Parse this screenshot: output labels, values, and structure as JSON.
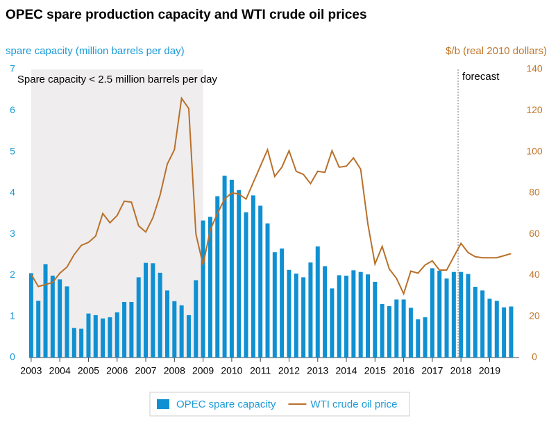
{
  "chart_data": {
    "type": "bar-line",
    "title": "OPEC spare production capacity and WTI crude oil prices",
    "y_label": "spare capacity (million barrels per day)",
    "y2_label": "$/b (real 2010 dollars)",
    "annotations": [
      {
        "text": "Spare capacity < 2.5 million barrels per day",
        "x": [
          2003,
          2009
        ]
      },
      {
        "text": "forecast",
        "x": 2017.9
      }
    ],
    "x": [
      2003,
      2003.25,
      2003.5,
      2003.75,
      2004,
      2004.25,
      2004.5,
      2004.75,
      2005,
      2005.25,
      2005.5,
      2005.75,
      2006,
      2006.25,
      2006.5,
      2006.75,
      2007,
      2007.25,
      2007.5,
      2007.75,
      2008,
      2008.25,
      2008.5,
      2008.75,
      2009,
      2009.25,
      2009.5,
      2009.75,
      2010,
      2010.25,
      2010.5,
      2010.75,
      2011,
      2011.25,
      2011.5,
      2011.75,
      2012,
      2012.25,
      2012.5,
      2012.75,
      2013,
      2013.25,
      2013.5,
      2013.75,
      2014,
      2014.25,
      2014.5,
      2014.75,
      2015,
      2015.25,
      2015.5,
      2015.75,
      2016,
      2016.25,
      2016.5,
      2016.75,
      2017,
      2017.25,
      2017.5,
      2017.75,
      2018,
      2018.25,
      2018.5,
      2018.75,
      2019,
      2019.25,
      2019.5,
      2019.75
    ],
    "series": [
      {
        "name": "OPEC spare capacity",
        "color": "#0f90d2",
        "kind": "bar",
        "values": [
          2.05,
          1.38,
          2.27,
          1.99,
          1.9,
          1.73,
          0.72,
          0.7,
          1.07,
          1.03,
          0.95,
          0.98,
          1.1,
          1.35,
          1.35,
          1.95,
          2.3,
          2.29,
          2.06,
          1.63,
          1.37,
          1.27,
          1.03,
          1.88,
          3.33,
          3.42,
          3.92,
          4.42,
          4.32,
          4.07,
          3.53,
          3.94,
          3.69,
          3.26,
          2.56,
          2.65,
          2.13,
          2.04,
          1.95,
          2.31,
          2.7,
          2.22,
          1.68,
          2.0,
          1.99,
          2.12,
          2.08,
          2.02,
          1.84,
          1.3,
          1.25,
          1.41,
          1.41,
          1.21,
          0.93,
          0.98,
          2.17,
          2.11,
          1.92,
          2.08,
          2.08,
          2.03,
          1.72,
          1.63,
          1.43,
          1.38,
          1.22,
          1.24
        ]
      },
      {
        "name": "WTI crude oil price",
        "color": "#b8702a",
        "kind": "line",
        "axis": "y2",
        "values": [
          40.5,
          34.5,
          35.5,
          36.5,
          41,
          44,
          50,
          54.5,
          56,
          59,
          70,
          65.5,
          69,
          76,
          75.5,
          64,
          61,
          68,
          79,
          94,
          101,
          126,
          121,
          60,
          45,
          62,
          70,
          77,
          80,
          79.5,
          77,
          85,
          93,
          101,
          88,
          92.5,
          100.5,
          90.5,
          89,
          84.5,
          90.5,
          90,
          100.5,
          92.5,
          93,
          97,
          91.5,
          65,
          45.5,
          54,
          43,
          38.5,
          31,
          42,
          41,
          45,
          47,
          42.5,
          42.5,
          49,
          55.5,
          51,
          49,
          48.5,
          48.5,
          48.5,
          49.5,
          50.5
        ]
      }
    ],
    "xlim": [
      2002.93,
      2020.03
    ],
    "xticks": [
      2003,
      2004,
      2005,
      2006,
      2007,
      2008,
      2009,
      2010,
      2011,
      2012,
      2013,
      2014,
      2015,
      2016,
      2017,
      2018,
      2019
    ],
    "ylim": [
      0,
      7
    ],
    "yticks": [
      0,
      1,
      2,
      3,
      4,
      5,
      6,
      7
    ],
    "y2lim": [
      0,
      140
    ],
    "y2ticks": [
      0,
      20,
      40,
      60,
      80,
      100,
      120,
      140
    ],
    "grid": false,
    "legend": "bottom"
  }
}
